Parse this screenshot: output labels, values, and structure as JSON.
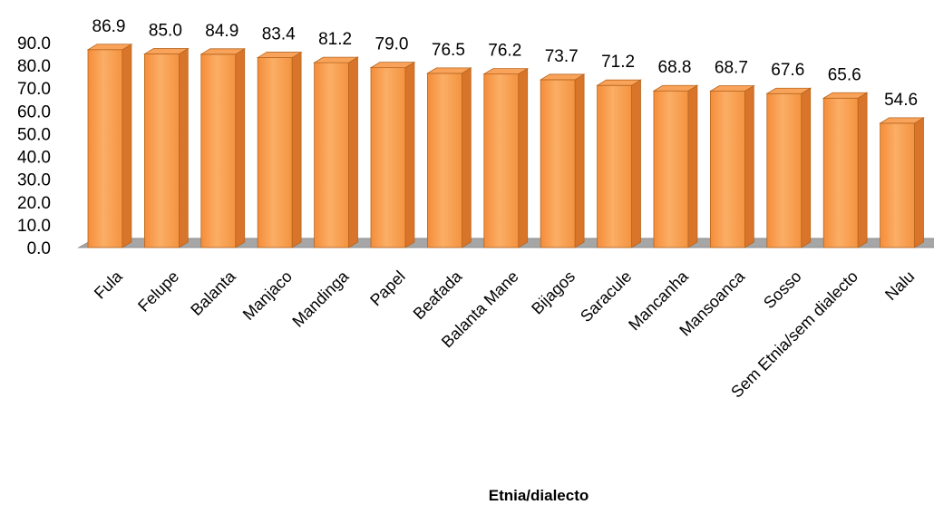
{
  "chart_data": {
    "type": "bar",
    "style": "3d-column",
    "xlabel": "Etnia/dialecto",
    "ylabel": "",
    "ylim": [
      0,
      90
    ],
    "yticks": [
      "0.0",
      "10.0",
      "20.0",
      "30.0",
      "40.0",
      "50.0",
      "60.0",
      "70.0",
      "80.0",
      "90.0"
    ],
    "grid": false,
    "legend": "none",
    "bar_color": "#F79646",
    "floor_color": "#A6A6A6",
    "categories": [
      "Fula",
      "Felupe",
      "Balanta",
      "Manjaco",
      "Mandinga",
      "Papel",
      "Beafada",
      "Balanta Mane",
      "Bijagos",
      "Saracule",
      "Mancanha",
      "Mansoanca",
      "Sosso",
      "Sem Etnia/sem dialecto",
      "Nalu"
    ],
    "values": [
      86.9,
      85.0,
      84.9,
      83.4,
      81.2,
      79.0,
      76.5,
      76.2,
      73.7,
      71.2,
      68.8,
      68.7,
      67.6,
      65.6,
      54.6
    ],
    "value_labels": [
      "86.9",
      "85.0",
      "84.9",
      "83.4",
      "81.2",
      "79.0",
      "76.5",
      "76.2",
      "73.7",
      "71.2",
      "68.8",
      "68.7",
      "67.6",
      "65.6",
      "54.6"
    ]
  }
}
